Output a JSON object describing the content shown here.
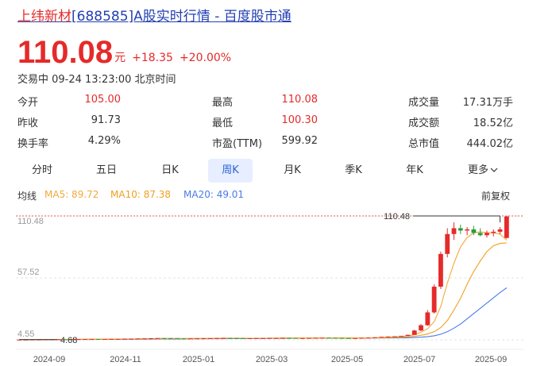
{
  "header": {
    "stock_name": "上纬新材",
    "title_rest": "[688585]A股实时行情 - 百度股市通"
  },
  "quote": {
    "price": "110.08",
    "unit": "元",
    "change": "+18.35",
    "change_pct": "+20.00%",
    "status": "交易中 09-24 13:23:00 北京时间"
  },
  "stats": [
    [
      {
        "label": "今开",
        "value": "105.00"
      },
      {
        "label": "最高",
        "value": "110.08"
      },
      {
        "label": "成交量",
        "value": "17.31万手"
      }
    ],
    [
      {
        "label": "昨收",
        "value": "91.73"
      },
      {
        "label": "最低",
        "value": "100.30"
      },
      {
        "label": "成交额",
        "value": "18.52亿"
      }
    ],
    [
      {
        "label": "换手率",
        "value": "4.29%"
      },
      {
        "label": "市盈(TTM)",
        "value": "599.92"
      },
      {
        "label": "总市值",
        "value": "444.02亿"
      }
    ]
  ],
  "tabs": [
    "分时",
    "五日",
    "日K",
    "周K",
    "月K",
    "季K",
    "年K",
    "更多"
  ],
  "active_tab": "周K",
  "indicators": {
    "label": "均线",
    "ma5": "MA5: 89.72",
    "ma10": "MA10: 87.38",
    "ma20": "MA20: 49.01",
    "adjust": "前复权"
  },
  "colors": {
    "up": "#e52a2a",
    "down": "#2a9d3a",
    "ma5": "#f2a93b",
    "ma10": "#f0a020",
    "ma20": "#4a7bea",
    "accent": "#2a62d9"
  },
  "chart_data": {
    "type": "candlestick",
    "y_ticks": [
      "110.48",
      "57.52",
      "4.55"
    ],
    "x_ticks": [
      "2024-09",
      "2024-11",
      "2025-01",
      "2025-03",
      "2025-05",
      "2025-07",
      "2025-09"
    ],
    "max_label": "110.48",
    "min_label": "4.68",
    "ylim": [
      4.55,
      110.48
    ],
    "candles": [
      [
        4.6,
        4.7,
        4.6,
        4.7
      ],
      [
        4.7,
        4.7,
        4.7,
        4.7
      ],
      [
        4.7,
        4.8,
        4.7,
        4.8
      ],
      [
        4.8,
        4.9,
        4.7,
        4.8
      ],
      [
        4.8,
        5.0,
        4.7,
        4.9
      ],
      [
        4.9,
        5.0,
        4.8,
        4.9
      ],
      [
        4.9,
        5.0,
        4.8,
        5.0
      ],
      [
        5.0,
        5.0,
        4.9,
        4.9
      ],
      [
        4.9,
        5.2,
        4.8,
        5.1
      ],
      [
        5.1,
        5.2,
        5.0,
        5.1
      ],
      [
        5.1,
        5.2,
        5.0,
        5.2
      ],
      [
        5.2,
        5.3,
        5.1,
        5.2
      ],
      [
        5.2,
        5.2,
        5.0,
        5.1
      ],
      [
        5.1,
        5.2,
        5.0,
        5.2
      ],
      [
        5.2,
        5.4,
        5.1,
        5.3
      ],
      [
        5.3,
        5.4,
        5.2,
        5.3
      ],
      [
        5.3,
        5.5,
        5.2,
        5.4
      ],
      [
        5.4,
        5.5,
        5.3,
        5.5
      ],
      [
        5.5,
        5.6,
        5.4,
        5.6
      ],
      [
        5.6,
        5.7,
        5.5,
        5.7
      ],
      [
        5.7,
        6.0,
        5.6,
        5.9
      ],
      [
        5.9,
        6.1,
        5.8,
        6.0
      ],
      [
        6.0,
        6.0,
        5.8,
        5.9
      ],
      [
        5.9,
        6.0,
        5.7,
        5.8
      ],
      [
        5.8,
        5.9,
        5.6,
        5.7
      ],
      [
        5.7,
        5.8,
        5.5,
        5.6
      ],
      [
        5.6,
        5.8,
        5.5,
        5.7
      ],
      [
        5.7,
        5.9,
        5.6,
        5.8
      ],
      [
        5.8,
        6.0,
        5.7,
        5.9
      ],
      [
        5.9,
        6.0,
        5.8,
        5.9
      ],
      [
        5.9,
        6.1,
        5.8,
        6.0
      ],
      [
        6.0,
        6.2,
        5.9,
        6.1
      ],
      [
        6.1,
        6.2,
        5.9,
        6.0
      ],
      [
        6.0,
        6.1,
        5.8,
        5.9
      ],
      [
        5.9,
        6.0,
        5.7,
        5.8
      ],
      [
        5.8,
        6.0,
        5.7,
        5.9
      ],
      [
        5.9,
        6.1,
        5.8,
        6.0
      ],
      [
        6.0,
        6.1,
        5.9,
        6.0
      ],
      [
        6.0,
        6.2,
        5.9,
        6.1
      ],
      [
        6.1,
        6.2,
        6.0,
        6.1
      ],
      [
        6.1,
        6.3,
        6.0,
        6.2
      ],
      [
        6.2,
        6.3,
        6.0,
        6.1
      ],
      [
        6.1,
        6.2,
        5.9,
        6.0
      ],
      [
        6.0,
        6.1,
        5.9,
        6.0
      ],
      [
        6.0,
        6.2,
        5.9,
        6.1
      ],
      [
        6.1,
        6.3,
        6.0,
        6.2
      ],
      [
        6.2,
        6.4,
        6.1,
        6.3
      ],
      [
        6.3,
        6.4,
        6.1,
        6.2
      ],
      [
        6.2,
        6.3,
        6.0,
        6.1
      ],
      [
        6.1,
        6.2,
        5.9,
        6.0
      ],
      [
        6.0,
        6.1,
        5.8,
        5.9
      ],
      [
        5.9,
        6.0,
        5.8,
        6.0
      ],
      [
        6.0,
        6.3,
        5.9,
        6.2
      ],
      [
        6.2,
        6.5,
        6.1,
        6.4
      ],
      [
        6.4,
        6.8,
        6.3,
        6.7
      ],
      [
        6.7,
        7.2,
        6.6,
        7.1
      ],
      [
        7.1,
        7.5,
        7.0,
        7.3
      ],
      [
        7.3,
        7.6,
        7.1,
        7.5
      ],
      [
        7.5,
        8.0,
        7.4,
        7.9
      ],
      [
        7.9,
        9.0,
        7.8,
        8.8
      ],
      [
        8.8,
        13.0,
        8.7,
        12.5
      ],
      [
        12.5,
        18.0,
        12.0,
        17.0
      ],
      [
        17.0,
        30.0,
        16.5,
        28.0
      ],
      [
        28.0,
        52.0,
        27.0,
        50.0
      ],
      [
        50.0,
        80.0,
        48.0,
        78.0
      ],
      [
        78.0,
        100.0,
        75.0,
        95.0
      ],
      [
        95.0,
        105.0,
        90.0,
        100.0
      ],
      [
        100.0,
        103.0,
        95.0,
        98.0
      ],
      [
        98.0,
        101.0,
        94.0,
        99.0
      ],
      [
        99.0,
        102.0,
        94.0,
        96.0
      ],
      [
        96.0,
        100.0,
        93.0,
        94.0
      ],
      [
        94.0,
        98.0,
        92.0,
        96.0
      ],
      [
        96.0,
        99.0,
        93.0,
        97.0
      ],
      [
        97.0,
        101.0,
        95.0,
        99.0
      ],
      [
        91.7,
        110.08,
        91.0,
        110.08
      ]
    ],
    "ma5": [
      4.6,
      4.7,
      4.7,
      4.8,
      4.8,
      4.9,
      4.9,
      4.9,
      5.0,
      5.0,
      5.1,
      5.1,
      5.1,
      5.2,
      5.2,
      5.2,
      5.3,
      5.3,
      5.4,
      5.5,
      5.6,
      5.7,
      5.8,
      5.8,
      5.8,
      5.7,
      5.7,
      5.7,
      5.7,
      5.8,
      5.9,
      6.0,
      6.0,
      6.0,
      6.0,
      5.9,
      5.9,
      5.9,
      6.0,
      6.0,
      6.1,
      6.1,
      6.1,
      6.1,
      6.1,
      6.1,
      6.2,
      6.2,
      6.2,
      6.2,
      6.1,
      6.0,
      6.0,
      6.1,
      6.3,
      6.6,
      6.9,
      7.1,
      7.4,
      7.9,
      8.9,
      11.0,
      14.0,
      20.0,
      33.0,
      53.0,
      70.0,
      84.0,
      92.0,
      96.0,
      97.0,
      96.0,
      96.0,
      95.0,
      89.72
    ],
    "ma10": [
      4.6,
      4.6,
      4.7,
      4.7,
      4.7,
      4.8,
      4.8,
      4.8,
      4.9,
      4.9,
      4.9,
      5.0,
      5.0,
      5.0,
      5.1,
      5.1,
      5.2,
      5.2,
      5.2,
      5.3,
      5.4,
      5.5,
      5.5,
      5.6,
      5.6,
      5.6,
      5.7,
      5.7,
      5.7,
      5.8,
      5.8,
      5.8,
      5.9,
      5.9,
      5.9,
      5.9,
      5.9,
      5.9,
      6.0,
      6.0,
      6.0,
      6.0,
      6.0,
      6.0,
      6.0,
      6.1,
      6.1,
      6.1,
      6.1,
      6.1,
      6.1,
      6.1,
      6.1,
      6.1,
      6.2,
      6.3,
      6.4,
      6.6,
      6.8,
      7.1,
      7.6,
      8.4,
      9.5,
      11.5,
      15.0,
      21.0,
      30.0,
      40.0,
      52.0,
      63.0,
      72.0,
      80.0,
      85.0,
      87.0,
      87.38
    ],
    "ma20": [
      4.6,
      4.6,
      4.6,
      4.6,
      4.7,
      4.7,
      4.7,
      4.7,
      4.8,
      4.8,
      4.8,
      4.8,
      4.9,
      4.9,
      4.9,
      5.0,
      5.0,
      5.0,
      5.1,
      5.1,
      5.1,
      5.2,
      5.2,
      5.3,
      5.3,
      5.3,
      5.4,
      5.4,
      5.4,
      5.5,
      5.5,
      5.5,
      5.6,
      5.6,
      5.6,
      5.7,
      5.7,
      5.7,
      5.8,
      5.8,
      5.8,
      5.8,
      5.9,
      5.9,
      5.9,
      5.9,
      5.9,
      6.0,
      6.0,
      6.0,
      6.0,
      6.0,
      6.0,
      6.0,
      6.1,
      6.1,
      6.1,
      6.2,
      6.2,
      6.3,
      6.5,
      6.8,
      7.2,
      8.0,
      9.3,
      11.5,
      14.5,
      18.0,
      22.5,
      27.0,
      31.5,
      36.0,
      40.5,
      45.0,
      49.01
    ]
  }
}
